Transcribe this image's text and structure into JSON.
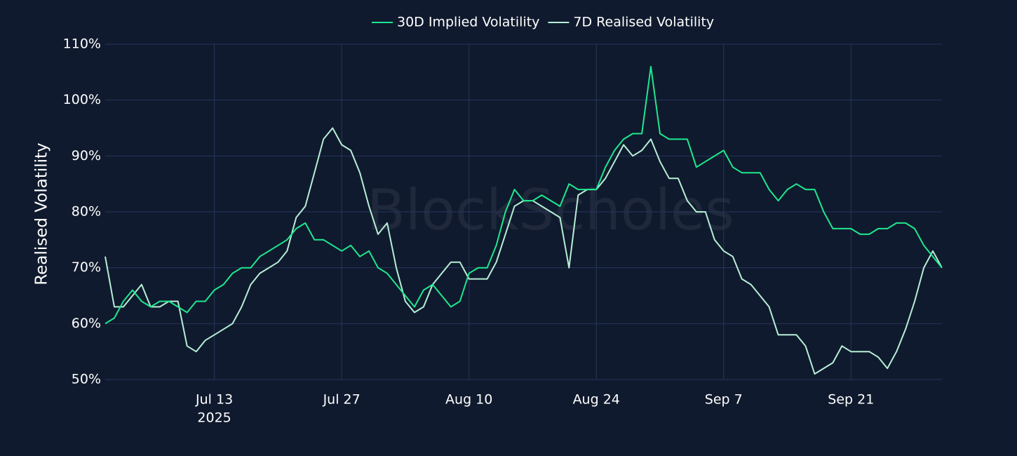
{
  "chart_data": {
    "type": "line",
    "y_label": "Realised Volatility",
    "watermark": "BlockScholes",
    "x_year_label": "2025",
    "x": [
      "2025-07-01",
      "2025-07-02",
      "2025-07-03",
      "2025-07-04",
      "2025-07-05",
      "2025-07-06",
      "2025-07-07",
      "2025-07-08",
      "2025-07-09",
      "2025-07-10",
      "2025-07-11",
      "2025-07-12",
      "2025-07-13",
      "2025-07-14",
      "2025-07-15",
      "2025-07-16",
      "2025-07-17",
      "2025-07-18",
      "2025-07-19",
      "2025-07-20",
      "2025-07-21",
      "2025-07-22",
      "2025-07-23",
      "2025-07-24",
      "2025-07-25",
      "2025-07-26",
      "2025-07-27",
      "2025-07-28",
      "2025-07-29",
      "2025-07-30",
      "2025-07-31",
      "2025-08-01",
      "2025-08-02",
      "2025-08-03",
      "2025-08-04",
      "2025-08-05",
      "2025-08-06",
      "2025-08-07",
      "2025-08-08",
      "2025-08-09",
      "2025-08-10",
      "2025-08-11",
      "2025-08-12",
      "2025-08-13",
      "2025-08-14",
      "2025-08-15",
      "2025-08-16",
      "2025-08-17",
      "2025-08-18",
      "2025-08-19",
      "2025-08-20",
      "2025-08-21",
      "2025-08-22",
      "2025-08-23",
      "2025-08-24",
      "2025-08-25",
      "2025-08-26",
      "2025-08-27",
      "2025-08-28",
      "2025-08-29",
      "2025-08-30",
      "2025-08-31",
      "2025-09-01",
      "2025-09-02",
      "2025-09-03",
      "2025-09-04",
      "2025-09-05",
      "2025-09-06",
      "2025-09-07",
      "2025-09-08",
      "2025-09-09",
      "2025-09-10",
      "2025-09-11",
      "2025-09-12",
      "2025-09-13",
      "2025-09-14",
      "2025-09-15",
      "2025-09-16",
      "2025-09-17",
      "2025-09-18",
      "2025-09-19",
      "2025-09-20",
      "2025-09-21",
      "2025-09-22",
      "2025-09-23",
      "2025-09-24",
      "2025-09-25",
      "2025-09-26",
      "2025-09-27",
      "2025-09-28",
      "2025-09-29",
      "2025-09-30",
      "2025-10-01"
    ],
    "series": [
      {
        "name": "30D Implied Volatility",
        "color": "#1ee88e",
        "values": [
          60,
          61,
          64,
          66,
          64,
          63,
          64,
          64,
          63,
          62,
          64,
          64,
          66,
          67,
          69,
          70,
          70,
          72,
          73,
          74,
          75,
          77,
          78,
          75,
          75,
          74,
          73,
          74,
          72,
          73,
          70,
          69,
          67,
          65,
          63,
          66,
          67,
          65,
          63,
          64,
          69,
          70,
          70,
          74,
          80,
          84,
          82,
          82,
          83,
          82,
          81,
          85,
          84,
          84,
          84,
          88,
          91,
          93,
          94,
          94,
          106,
          94,
          93,
          93,
          93,
          88,
          89,
          90,
          91,
          88,
          87,
          87,
          87,
          84,
          82,
          84,
          85,
          84,
          84,
          80,
          77,
          77,
          77,
          76,
          76,
          77,
          77,
          78,
          78,
          77,
          74,
          72,
          70
        ]
      },
      {
        "name": "7D Realised Volatility",
        "color": "#b6efd6",
        "values": [
          72,
          63,
          63,
          65,
          67,
          63,
          63,
          64,
          64,
          56,
          55,
          57,
          58,
          59,
          60,
          63,
          67,
          69,
          70,
          71,
          73,
          79,
          81,
          87,
          93,
          95,
          92,
          91,
          87,
          81,
          76,
          78,
          70,
          64,
          62,
          63,
          67,
          69,
          71,
          71,
          68,
          68,
          68,
          71,
          76,
          81,
          82,
          82,
          81,
          80,
          79,
          70,
          83,
          84,
          84,
          86,
          89,
          92,
          90,
          91,
          93,
          89,
          86,
          86,
          82,
          80,
          80,
          75,
          73,
          72,
          68,
          67,
          65,
          63,
          58,
          58,
          58,
          56,
          51,
          52,
          53,
          56,
          55,
          55,
          55,
          54,
          52,
          55,
          59,
          64,
          70,
          73,
          70
        ]
      }
    ],
    "xlim": [
      "2025-07-01",
      "2025-10-01"
    ],
    "xticks": [
      {
        "value": "2025-07-13",
        "label": "Jul 13"
      },
      {
        "value": "2025-07-27",
        "label": "Jul 27"
      },
      {
        "value": "2025-08-10",
        "label": "Aug 10"
      },
      {
        "value": "2025-08-24",
        "label": "Aug 24"
      },
      {
        "value": "2025-09-07",
        "label": "Sep 7"
      },
      {
        "value": "2025-09-21",
        "label": "Sep 21"
      }
    ],
    "ylim": [
      50,
      110
    ],
    "yticks": [
      {
        "value": 50,
        "label": "50%"
      },
      {
        "value": 60,
        "label": "60%"
      },
      {
        "value": 70,
        "label": "70%"
      },
      {
        "value": 80,
        "label": "80%"
      },
      {
        "value": 90,
        "label": "90%"
      },
      {
        "value": 100,
        "label": "100%"
      },
      {
        "value": 110,
        "label": "110%"
      }
    ],
    "grid": true,
    "legend": "top"
  }
}
